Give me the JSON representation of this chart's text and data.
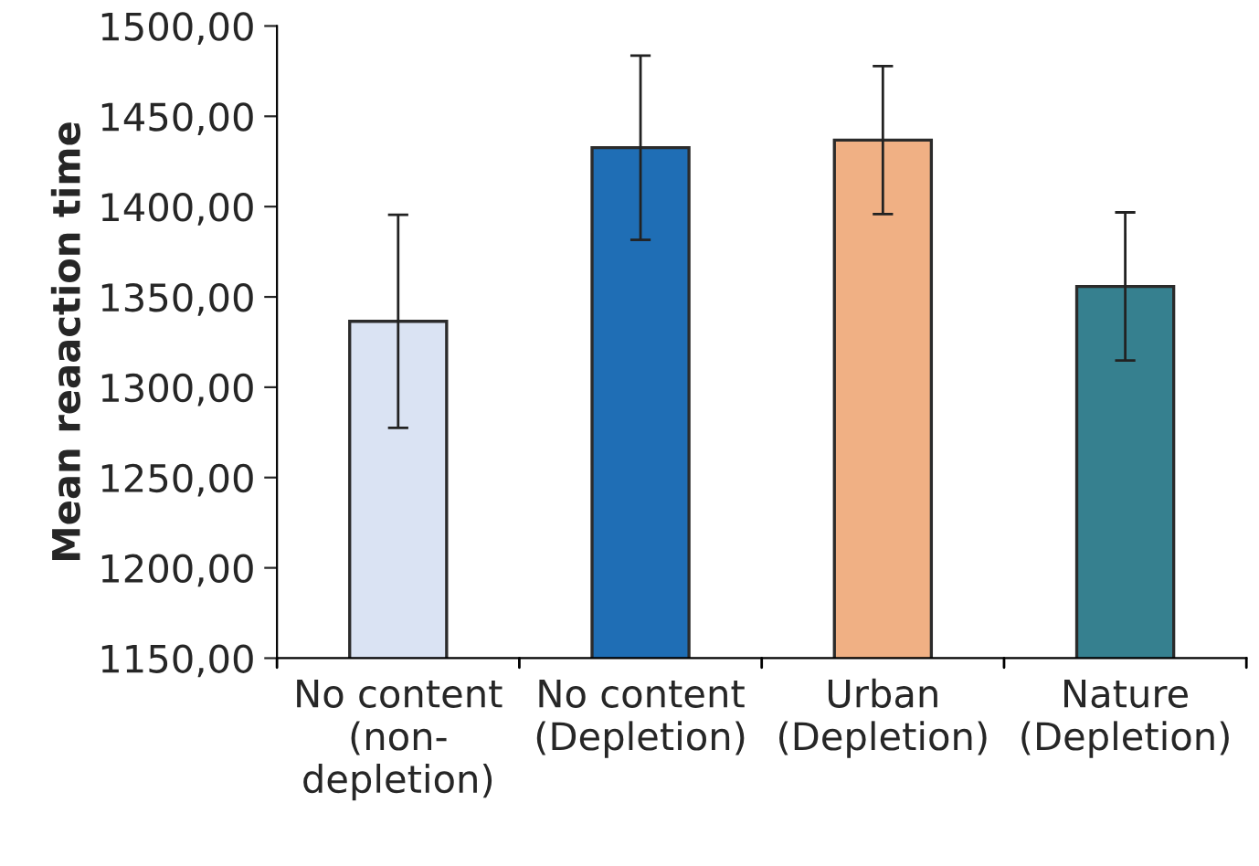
{
  "chart_data": {
    "type": "bar",
    "ylabel": "Mean reaaction time",
    "categories": [
      "No content\n(non-\ndepletion)",
      "No content\n(Depletion)",
      "Urban\n(Depletion)",
      "Nature\n(Depletion)"
    ],
    "values": [
      1336.5,
      1432.6,
      1436.8,
      1355.8
    ],
    "errors": [
      59,
      51,
      41,
      41
    ],
    "colors": [
      "#dae3f3",
      "#1f6eb5",
      "#f0b084",
      "#36808f"
    ],
    "ylim": [
      1150,
      1500
    ],
    "yticks": [
      {
        "value": 1150,
        "label": "1150,00"
      },
      {
        "value": 1200,
        "label": "1200,00"
      },
      {
        "value": 1250,
        "label": "1250,00"
      },
      {
        "value": 1300,
        "label": "1300,00"
      },
      {
        "value": 1350,
        "label": "1350,00"
      },
      {
        "value": 1400,
        "label": "1400,00"
      },
      {
        "value": 1450,
        "label": "1450,00"
      },
      {
        "value": 1500,
        "label": "1500,00"
      }
    ],
    "grid": false
  }
}
